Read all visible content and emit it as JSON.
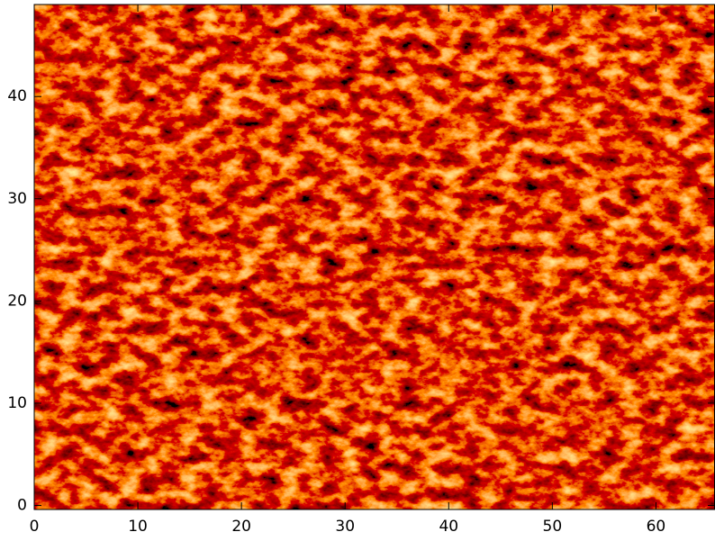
{
  "chart_data": {
    "type": "image",
    "xlim": [
      0,
      65.7
    ],
    "ylim": [
      -0.4,
      49
    ],
    "xticks": [
      0,
      10,
      20,
      30,
      40,
      50,
      60
    ],
    "yticks": [
      0,
      10,
      20,
      30,
      40
    ]
  }
}
